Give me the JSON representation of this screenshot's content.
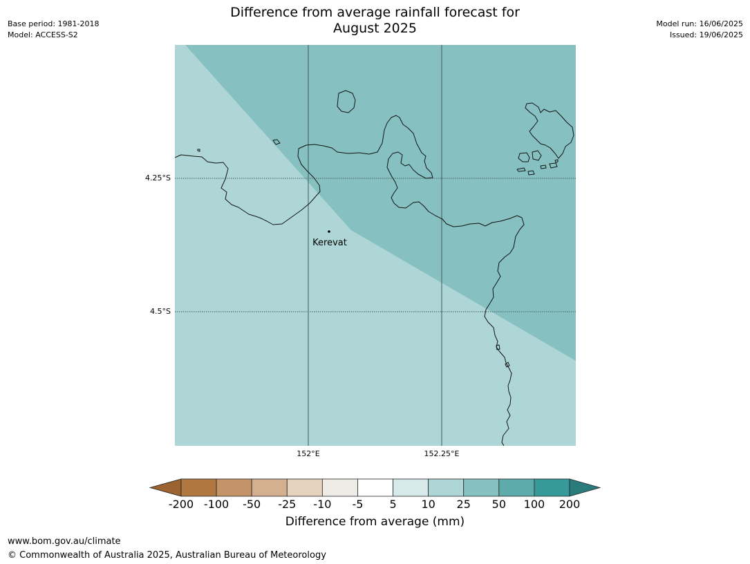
{
  "header": {
    "title_line1": "Difference from average rainfall forecast for",
    "title_line2": "August 2025",
    "base_period": "Base period: 1981-2018",
    "model": "Model: ACCESS-S2",
    "model_run": "Model run: 16/06/2025",
    "issued": "Issued: 19/06/2025"
  },
  "map": {
    "lat_labels": [
      "4.25°S",
      "4.5°S"
    ],
    "lon_labels": [
      "152°E",
      "152.25°E"
    ],
    "place_name": "Kerevat",
    "colors": {
      "background_zone": "#aed6d6",
      "forecast_zone": "#86c0c0",
      "coastline": "#111111",
      "graticule": "#3d5a5a"
    }
  },
  "colorbar": {
    "title": "Difference from average (mm)",
    "tick_labels": [
      "-200",
      "-100",
      "-50",
      "-25",
      "-10",
      "-5",
      "5",
      "10",
      "25",
      "50",
      "100",
      "200"
    ],
    "colors": [
      "#9b6330",
      "#b07840",
      "#c49468",
      "#d4b090",
      "#e5d2be",
      "#efece8",
      "#ffffff",
      "#d7eaea",
      "#aed6d6",
      "#86c0c0",
      "#5eabab",
      "#369a9a",
      "#2a7c7c"
    ]
  },
  "footer": {
    "url": "www.bom.gov.au/climate",
    "copyright": "© Commonwealth of Australia 2025, Australian Bureau of Meteorology"
  }
}
